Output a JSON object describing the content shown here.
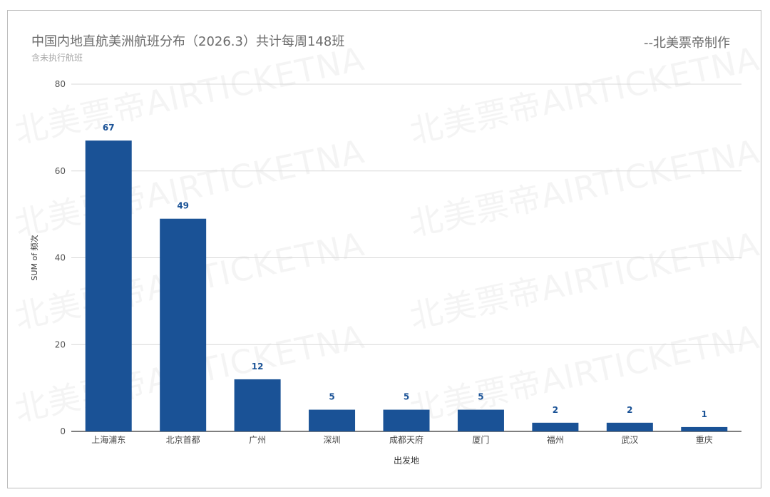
{
  "header": {
    "title": "中国内地直航美洲航班分布（2026.3）共计每周148班",
    "subtitle": "含未执行航班",
    "credit": "--北美票帝制作"
  },
  "watermark": "北美票帝AIRTICKETNA",
  "colors": {
    "bar": "#1a5296",
    "label": "#1a5296",
    "grid": "#d9d9d9",
    "axis": "#333333"
  },
  "chart_data": {
    "type": "bar",
    "title": "中国内地直航美洲航班分布（2026.3）共计每周148班",
    "subtitle": "含未执行航班",
    "xlabel": "出发地",
    "ylabel": "SUM of 频次",
    "ylim": [
      0,
      80
    ],
    "yticks": [
      0,
      20,
      40,
      60,
      80
    ],
    "grid": true,
    "legend": "none",
    "categories": [
      "上海浦东",
      "北京首都",
      "广州",
      "深圳",
      "成都天府",
      "厦门",
      "福州",
      "武汉",
      "重庆"
    ],
    "values": [
      67,
      49,
      12,
      5,
      5,
      5,
      2,
      2,
      1
    ]
  }
}
